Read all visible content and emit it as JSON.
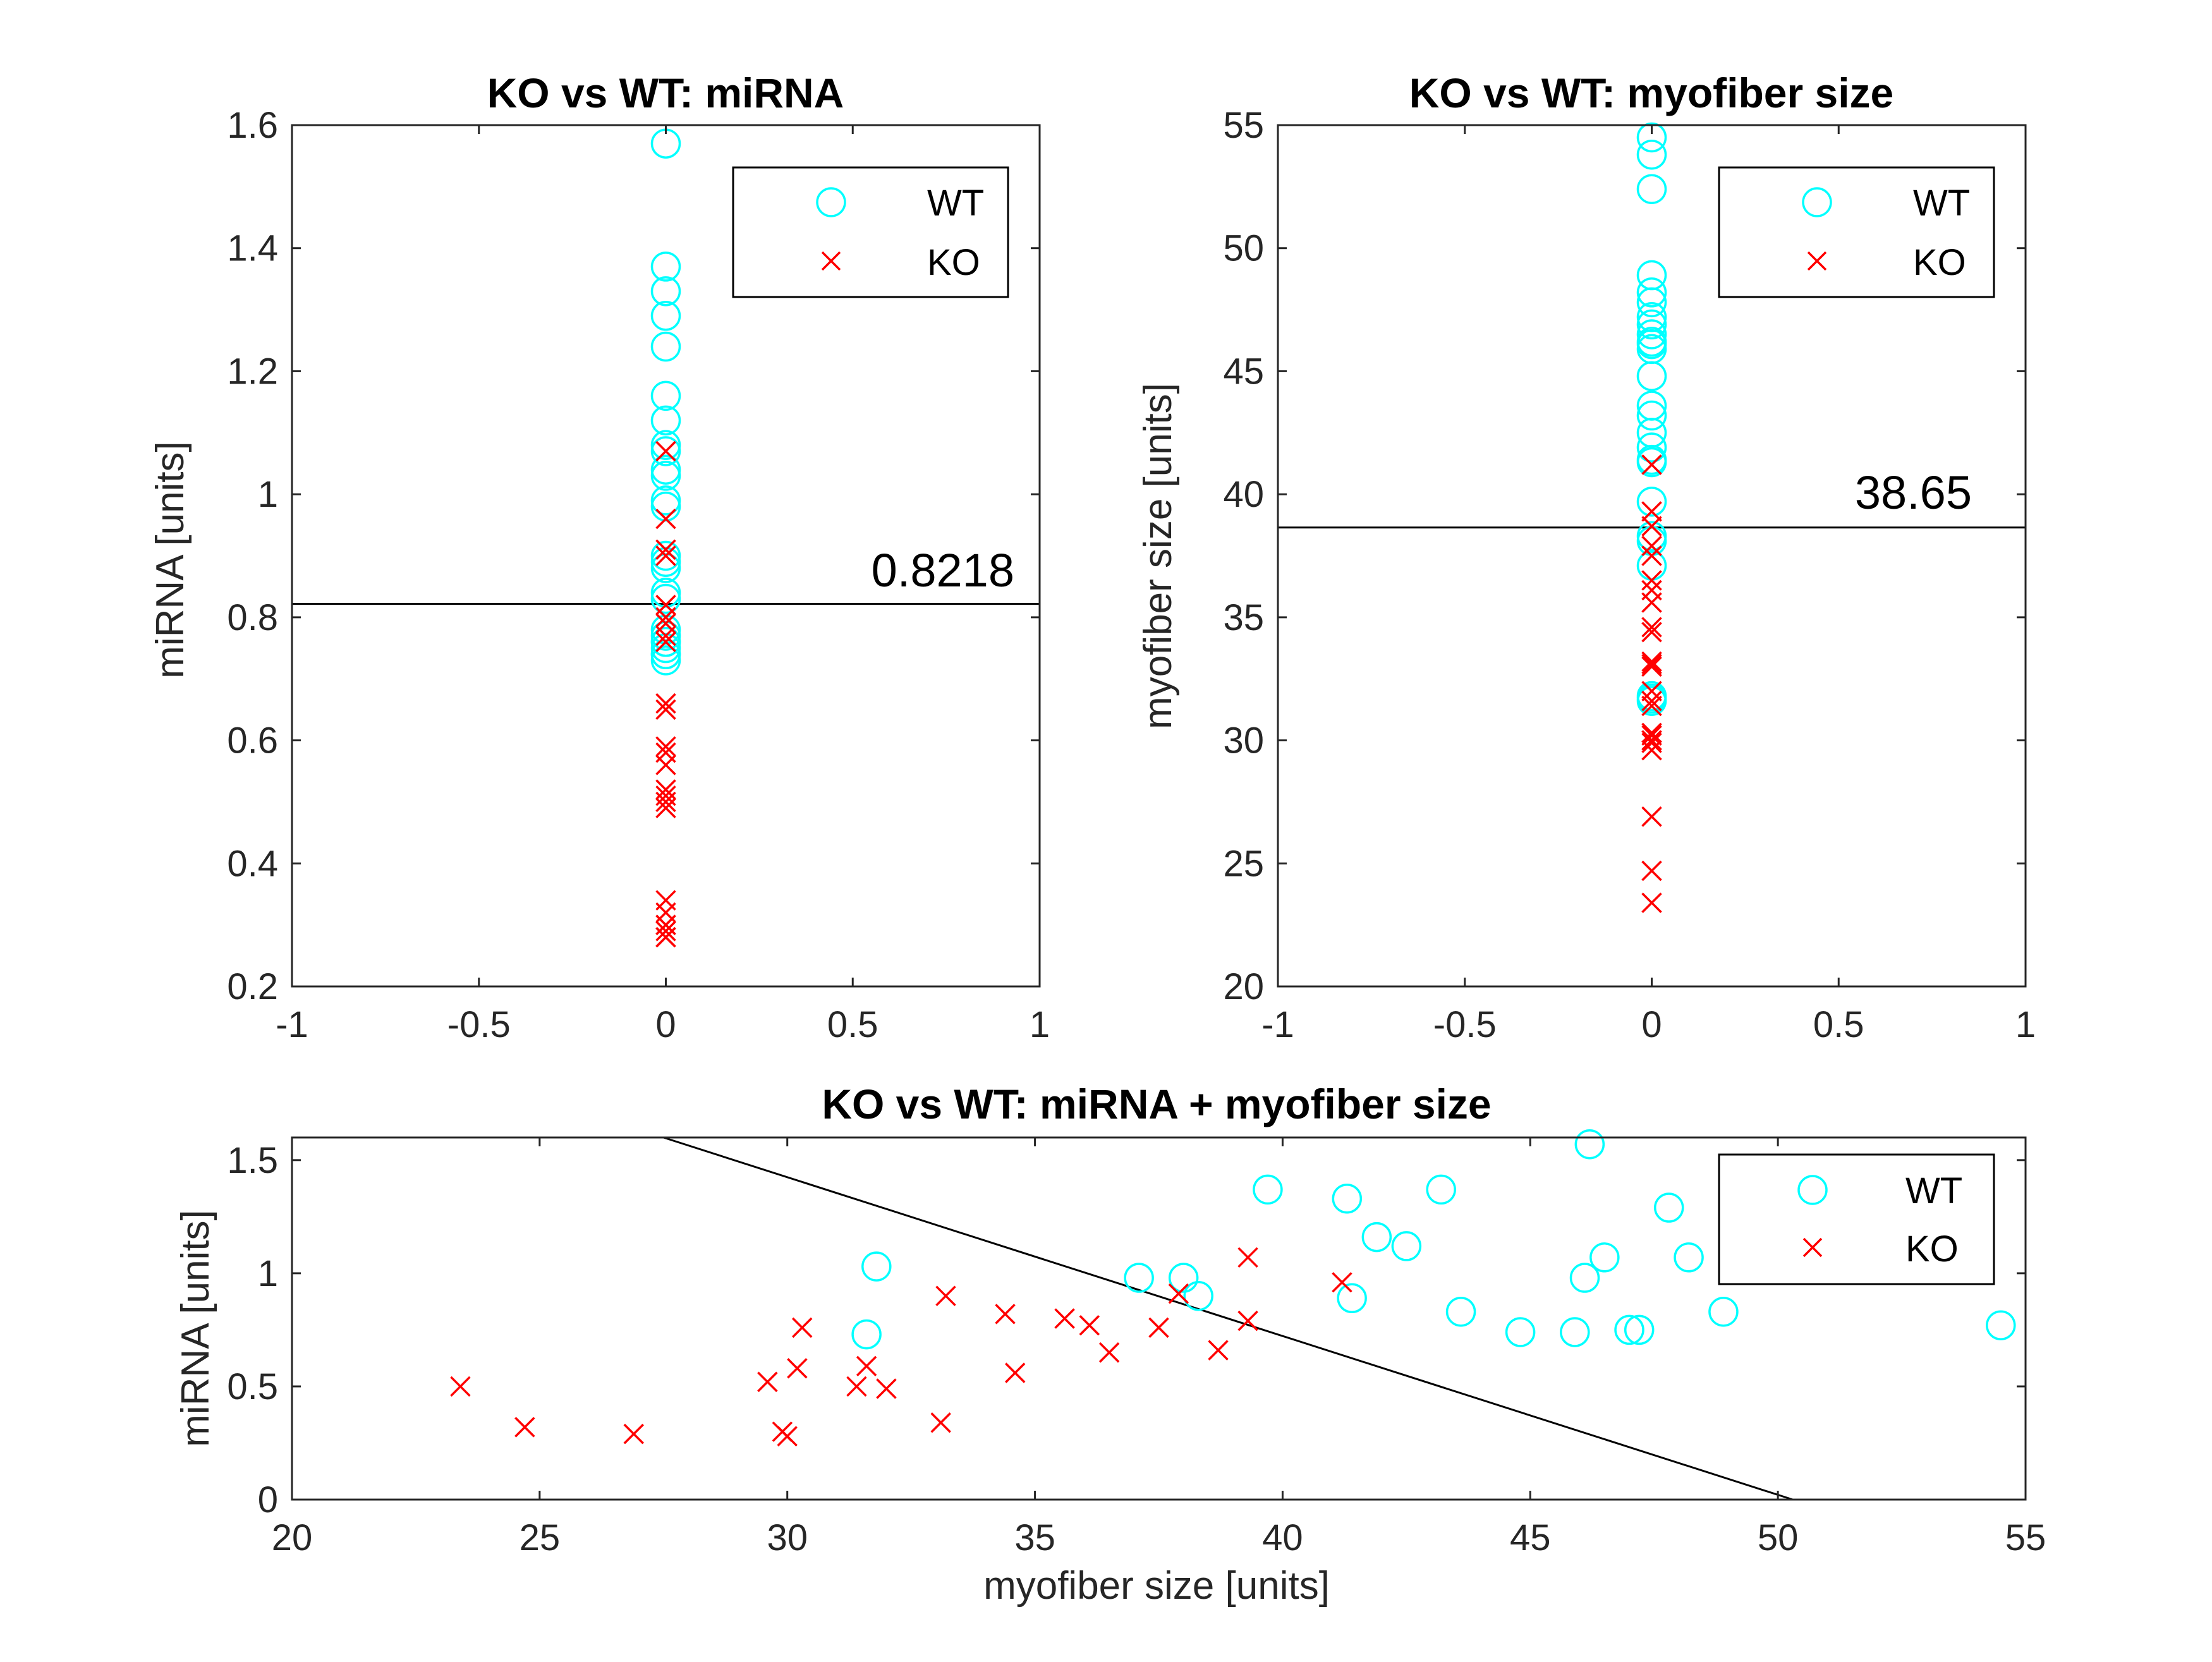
{
  "colors": {
    "wt": "#00ffff",
    "ko": "#ff0000",
    "axis": "#262626",
    "line": "#000000"
  },
  "chart_data": [
    {
      "type": "scatter",
      "title": "KO vs WT: miRNA",
      "xlabel": "",
      "ylabel": "miRNA [units]",
      "xlim": [
        -1,
        1
      ],
      "ylim": [
        0.2,
        1.6
      ],
      "xticks": [
        -1,
        -0.5,
        0,
        0.5,
        1
      ],
      "xtick_labels": [
        "-1",
        "-0.5",
        "0",
        "0.5",
        "1"
      ],
      "yticks": [
        0.2,
        0.4,
        0.6,
        0.8,
        1.0,
        1.2,
        1.4,
        1.6
      ],
      "ytick_labels": [
        "0.2",
        "0.4",
        "0.6",
        "0.8",
        "1",
        "1.2",
        "1.4",
        "1.6"
      ],
      "legend": {
        "position": "top-right",
        "entries": [
          "WT",
          "KO"
        ]
      },
      "threshold": {
        "y": 0.8218,
        "label": "0.8218"
      },
      "series": [
        {
          "name": "WT",
          "marker": "circle",
          "x": [
            0,
            0,
            0,
            0,
            0,
            0,
            0,
            0,
            0,
            0,
            0,
            0,
            0,
            0,
            0,
            0,
            0,
            0,
            0,
            0,
            0,
            0,
            0,
            0,
            0,
            0
          ],
          "y": [
            1.57,
            1.37,
            1.33,
            1.29,
            1.24,
            1.16,
            1.12,
            1.08,
            1.07,
            1.04,
            1.03,
            0.99,
            0.98,
            0.9,
            0.89,
            0.88,
            0.84,
            0.83,
            0.78,
            0.77,
            0.76,
            0.76,
            0.75,
            0.74,
            0.74,
            0.73
          ]
        },
        {
          "name": "KO",
          "marker": "x",
          "x": [
            0,
            0,
            0,
            0,
            0,
            0,
            0,
            0,
            0,
            0,
            0,
            0,
            0,
            0,
            0,
            0,
            0,
            0,
            0,
            0,
            0,
            0,
            0,
            0,
            0
          ],
          "y": [
            1.07,
            0.96,
            0.91,
            0.9,
            0.82,
            0.8,
            0.79,
            0.77,
            0.76,
            0.66,
            0.65,
            0.59,
            0.58,
            0.56,
            0.52,
            0.51,
            0.5,
            0.49,
            0.34,
            0.32,
            0.3,
            0.3,
            0.29,
            0.28,
            0.28
          ]
        }
      ]
    },
    {
      "type": "scatter",
      "title": "KO vs WT: myofiber size",
      "xlabel": "",
      "ylabel": "myofiber size [units]",
      "xlim": [
        -1,
        1
      ],
      "ylim": [
        20,
        55
      ],
      "xticks": [
        -1,
        -0.5,
        0,
        0.5,
        1
      ],
      "xtick_labels": [
        "-1",
        "-0.5",
        "0",
        "0.5",
        "1"
      ],
      "yticks": [
        20,
        25,
        30,
        35,
        40,
        45,
        50,
        55
      ],
      "ytick_labels": [
        "20",
        "25",
        "30",
        "35",
        "40",
        "45",
        "50",
        "55"
      ],
      "legend": {
        "position": "top-right",
        "entries": [
          "WT",
          "KO"
        ]
      },
      "threshold": {
        "y": 38.65,
        "label": "38.65"
      },
      "series": [
        {
          "name": "WT",
          "marker": "circle",
          "x": [
            0,
            0,
            0,
            0,
            0,
            0,
            0,
            0,
            0,
            0,
            0,
            0,
            0,
            0,
            0,
            0,
            0,
            0,
            0,
            0,
            0,
            0,
            0,
            0,
            0,
            0
          ],
          "y": [
            54.5,
            53.8,
            52.4,
            48.9,
            48.2,
            47.8,
            47.2,
            46.9,
            46.5,
            46.2,
            45.9,
            44.8,
            43.6,
            42.5,
            41.9,
            41.4,
            41.3,
            39.7,
            38.3,
            38.1,
            37.1,
            31.8,
            31.7,
            31.6,
            46.1,
            43.2
          ]
        },
        {
          "name": "KO",
          "marker": "x",
          "x": [
            0,
            0,
            0,
            0,
            0,
            0,
            0,
            0,
            0,
            0,
            0,
            0,
            0,
            0,
            0,
            0,
            0,
            0,
            0,
            0,
            0,
            0,
            0,
            0,
            0
          ],
          "y": [
            41.2,
            39.3,
            38.7,
            37.9,
            37.5,
            36.5,
            36.1,
            35.6,
            34.6,
            34.4,
            33.2,
            33.1,
            32.0,
            31.6,
            31.4,
            30.3,
            30.2,
            30.0,
            30.0,
            29.9,
            29.6,
            26.9,
            24.7,
            23.4,
            33.0
          ]
        }
      ]
    },
    {
      "type": "scatter",
      "title": "KO vs WT: miRNA + myofiber size",
      "xlabel": "myofiber size [units]",
      "ylabel": "miRNA [units]",
      "xlim": [
        20,
        55
      ],
      "ylim": [
        0,
        1.6
      ],
      "xticks": [
        20,
        25,
        30,
        35,
        40,
        45,
        50,
        55
      ],
      "xtick_labels": [
        "20",
        "25",
        "30",
        "35",
        "40",
        "45",
        "50",
        "55"
      ],
      "yticks": [
        0,
        0.5,
        1,
        1.5
      ],
      "ytick_labels": [
        "0",
        "0.5",
        "1",
        "1.5"
      ],
      "legend": {
        "position": "top-right",
        "entries": [
          "WT",
          "KO"
        ]
      },
      "boundary": {
        "x": [
          27.5,
          50.3
        ],
        "y": [
          1.6,
          0.0
        ]
      },
      "series": [
        {
          "name": "WT",
          "marker": "circle",
          "x": [
            31.6,
            31.8,
            37.1,
            38.0,
            38.3,
            39.7,
            41.3,
            41.4,
            41.9,
            42.5,
            43.2,
            43.6,
            44.8,
            45.9,
            46.1,
            46.2,
            46.5,
            47.0,
            47.2,
            47.8,
            48.2,
            48.9,
            54.5
          ],
          "y": [
            0.73,
            1.03,
            0.98,
            0.98,
            0.9,
            1.37,
            1.33,
            0.89,
            1.16,
            1.12,
            1.37,
            0.83,
            0.74,
            0.74,
            0.98,
            1.57,
            1.07,
            0.75,
            0.75,
            1.29,
            1.07,
            0.83,
            0.77
          ]
        },
        {
          "name": "KO",
          "marker": "x",
          "x": [
            23.4,
            24.7,
            26.9,
            29.6,
            29.9,
            30.0,
            30.2,
            30.3,
            31.4,
            31.6,
            32.0,
            33.1,
            33.2,
            34.4,
            34.6,
            35.6,
            36.1,
            36.5,
            37.5,
            37.9,
            38.7,
            39.3,
            39.3,
            41.2
          ],
          "y": [
            0.5,
            0.32,
            0.29,
            0.52,
            0.3,
            0.28,
            0.58,
            0.76,
            0.5,
            0.59,
            0.49,
            0.34,
            0.9,
            0.82,
            0.56,
            0.8,
            0.77,
            0.65,
            0.76,
            0.91,
            0.66,
            0.79,
            1.07,
            0.96
          ]
        }
      ]
    }
  ]
}
